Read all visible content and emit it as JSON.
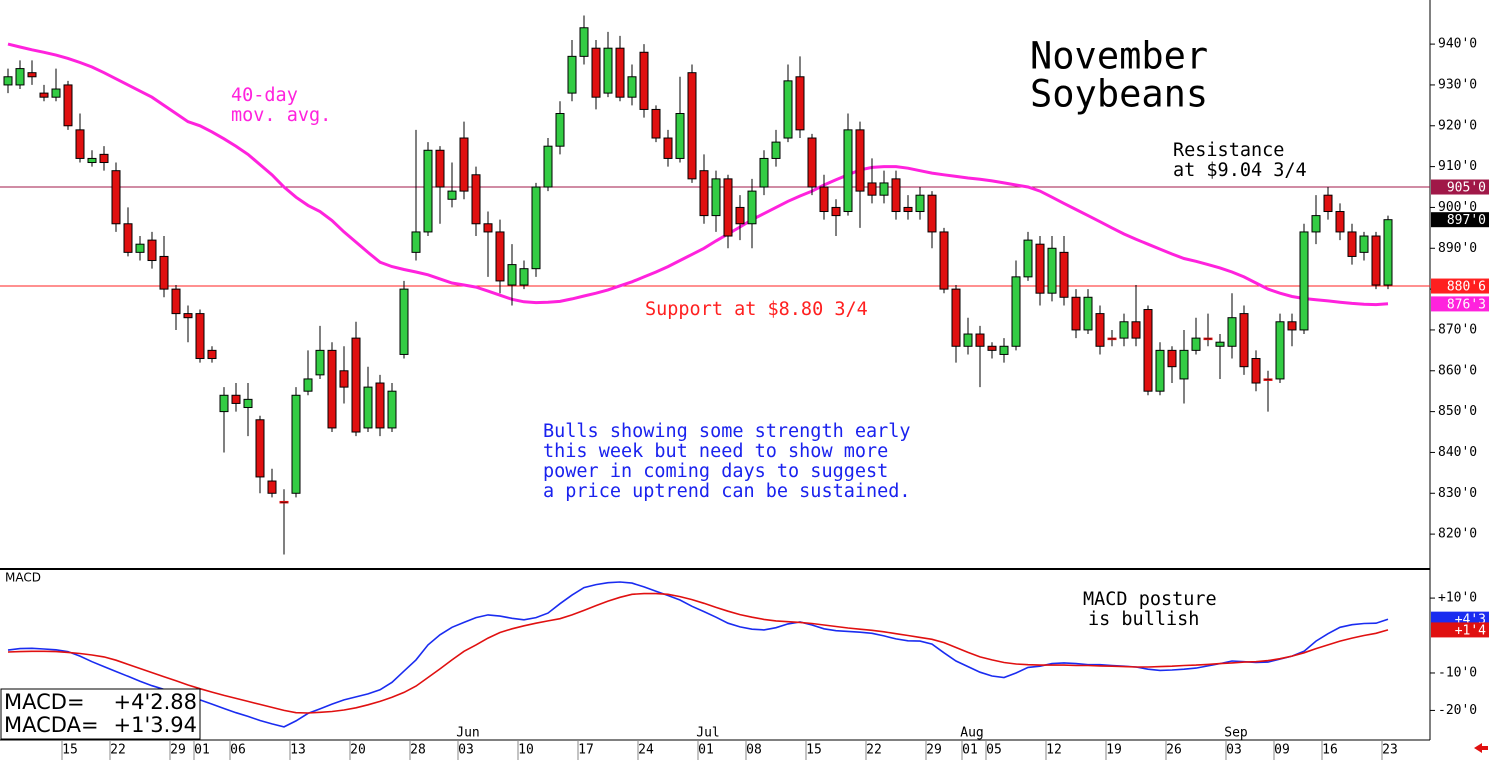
{
  "chart_data": [
    {
      "type": "candlestick",
      "title": [
        "November",
        "Soybeans"
      ],
      "categories": [
        null,
        null,
        null,
        null,
        null,
        "15",
        null,
        null,
        null,
        "22",
        null,
        null,
        null,
        null,
        "29",
        null,
        "01",
        null,
        null,
        "06",
        null,
        null,
        null,
        null,
        "13",
        null,
        null,
        null,
        null,
        "20",
        null,
        null,
        null,
        null,
        "28",
        null,
        null,
        null,
        "03",
        null,
        null,
        null,
        null,
        "10",
        null,
        null,
        null,
        null,
        "17",
        null,
        null,
        null,
        null,
        "24",
        null,
        null,
        null,
        null,
        "01",
        null,
        null,
        null,
        "08",
        null,
        null,
        null,
        null,
        "15",
        null,
        null,
        null,
        null,
        "22",
        null,
        null,
        null,
        null,
        "29",
        null,
        null,
        "01",
        null,
        "05",
        null,
        null,
        null,
        null,
        "12",
        null,
        null,
        null,
        null,
        "19",
        null,
        null,
        null,
        null,
        "26",
        null,
        null,
        null,
        null,
        "03",
        null,
        null,
        null,
        "09",
        null,
        null,
        null,
        "16",
        null,
        null,
        null,
        null,
        "23"
      ],
      "month_labels": [
        "Jun",
        "Jul",
        "Aug",
        "Sep"
      ],
      "open": [
        930,
        930,
        933,
        928,
        927,
        930,
        919,
        911,
        913,
        909,
        896,
        889,
        892,
        888,
        880,
        874,
        874,
        865,
        850,
        854,
        851,
        848,
        833,
        828,
        830,
        855,
        859,
        865,
        860,
        868,
        846,
        857,
        846,
        864,
        889,
        894,
        914,
        902,
        917,
        908,
        896,
        894,
        881,
        881,
        885,
        905,
        915,
        928,
        937,
        939,
        928,
        939,
        927,
        938,
        924,
        917,
        912,
        933,
        909,
        898,
        907,
        900,
        896,
        905,
        912,
        917,
        932,
        917,
        905,
        900,
        899,
        919,
        906,
        903,
        907,
        900,
        899,
        903,
        894,
        880,
        866,
        869,
        866,
        864,
        866,
        883,
        891,
        879,
        889,
        878,
        870,
        874,
        868,
        868,
        872,
        875,
        855,
        865,
        858,
        865,
        868,
        866,
        866,
        874,
        863,
        858,
        858,
        872,
        870,
        894,
        903,
        899,
        894,
        889,
        893,
        881
      ],
      "high": [
        934,
        936,
        936,
        930,
        934,
        931,
        923,
        914,
        915,
        911,
        900,
        893,
        894,
        893,
        881,
        876,
        875,
        866,
        856,
        857,
        857,
        849,
        836,
        831,
        856,
        865,
        871,
        867,
        866,
        872,
        861,
        859,
        857,
        882,
        919,
        916,
        915,
        911,
        921,
        910,
        899,
        897,
        891,
        887,
        906,
        917,
        926,
        941,
        947,
        941,
        943,
        942,
        935,
        940,
        925,
        919,
        932,
        935,
        913,
        909,
        908,
        903,
        907,
        914,
        919,
        935,
        937,
        918,
        908,
        902,
        923,
        921,
        912,
        909,
        909,
        903,
        905,
        904,
        895,
        881,
        873,
        871,
        867,
        868,
        887,
        894,
        893,
        893,
        893,
        880,
        880,
        876,
        870,
        874,
        881,
        876,
        867,
        866,
        870,
        873,
        874,
        869,
        879,
        876,
        865,
        860,
        874,
        874,
        896,
        903,
        905,
        901,
        896,
        894,
        894,
        898
      ],
      "low": [
        928,
        929,
        930,
        926,
        926,
        919,
        911,
        910,
        909,
        894,
        888,
        887,
        885,
        878,
        870,
        867,
        862,
        862,
        840,
        850,
        844,
        830,
        829,
        815,
        829,
        854,
        858,
        845,
        852,
        844,
        845,
        844,
        845,
        863,
        887,
        893,
        896,
        900,
        902,
        893,
        883,
        879,
        876,
        880,
        883,
        904,
        913,
        926,
        935,
        924,
        927,
        926,
        925,
        922,
        916,
        910,
        911,
        906,
        896,
        894,
        890,
        892,
        890,
        903,
        910,
        916,
        917,
        903,
        897,
        893,
        898,
        895,
        901,
        901,
        897,
        897,
        897,
        890,
        879,
        862,
        864,
        856,
        863,
        862,
        865,
        882,
        876,
        877,
        876,
        868,
        869,
        864,
        866,
        866,
        866,
        854,
        854,
        857,
        852,
        864,
        866,
        858,
        863,
        859,
        855,
        850,
        857,
        866,
        869,
        891,
        897,
        892,
        886,
        887,
        880,
        880
      ],
      "close": [
        932,
        934,
        932,
        927,
        929,
        920,
        912,
        912,
        911,
        896,
        889,
        891,
        887,
        880,
        874,
        873,
        863,
        863,
        854,
        852,
        853,
        834,
        830,
        828,
        854,
        858,
        865,
        846,
        856,
        845,
        856,
        846,
        855,
        880,
        894,
        914,
        905,
        904,
        904,
        896,
        894,
        882,
        886,
        885,
        905,
        915,
        923,
        937,
        944,
        927,
        939,
        927,
        932,
        924,
        917,
        912,
        923,
        907,
        898,
        907,
        893,
        896,
        904,
        912,
        916,
        931,
        919,
        905,
        899,
        898,
        919,
        904,
        903,
        906,
        899,
        899,
        903,
        894,
        880,
        866,
        869,
        866,
        865,
        866,
        883,
        892,
        879,
        890,
        878,
        870,
        878,
        866,
        868,
        872,
        868,
        855,
        865,
        861,
        865,
        868,
        868,
        867,
        873,
        861,
        857,
        858,
        872,
        870,
        894,
        898,
        899,
        894,
        888,
        893,
        881,
        897
      ],
      "up_color": "#33cc44",
      "down_color": "#e01010",
      "overlays": [
        {
          "color": "#ff22dd",
          "values": [
            940,
            939.3,
            938.6,
            938,
            937.3,
            936.5,
            935.5,
            934.4,
            933,
            931.5,
            930,
            928.5,
            927,
            925,
            923,
            921,
            920,
            918.5,
            916.8,
            915,
            913,
            910.5,
            908,
            905,
            902.5,
            900.5,
            899,
            896.8,
            894,
            891.5,
            889,
            886.6,
            885.5,
            884.8,
            884.2,
            883.5,
            882.5,
            881.5,
            881,
            880.5,
            879.5,
            878.5,
            877.5,
            876.9,
            876.7,
            876.8,
            877,
            877.6,
            878.3,
            879,
            879.8,
            880.8,
            881.8,
            883,
            884.2,
            885.5,
            887,
            888.5,
            890,
            891.8,
            893.5,
            895.2,
            897,
            898.5,
            900,
            901.5,
            902.8,
            904,
            905.5,
            906.8,
            908,
            909.2,
            909.8,
            910,
            910,
            909.6,
            909,
            908.4,
            908,
            907.6,
            907.2,
            906.9,
            906.5,
            906,
            905.5,
            905,
            904,
            902.5,
            901,
            899.5,
            898,
            896.5,
            895,
            893.5,
            892.2,
            891,
            889.8,
            888.6,
            887.5,
            886.8,
            886,
            885.2,
            884.2,
            883,
            881.5,
            880,
            879,
            878.2,
            877.7,
            877.4,
            877.1,
            876.8,
            876.5,
            876.3,
            876.2,
            876.4
          ]
        }
      ],
      "hlines": [
        {
          "value": 905,
          "label": "905'0",
          "color": "#a01848"
        },
        {
          "value": 880.75,
          "label": "880'6",
          "color": "#ff2020"
        }
      ],
      "tags": [
        {
          "value": 897,
          "label": "897'0",
          "color": "#000000"
        },
        {
          "value": 876.375,
          "label": "876'3",
          "color": "#ff22dd"
        }
      ],
      "annotations": [
        {
          "lines": [
            "40-day",
            "mov. avg."
          ],
          "color": "#ff22dd"
        },
        {
          "lines": [
            "Resistance",
            "at $9.04 3/4"
          ],
          "color": "#000000"
        },
        {
          "lines": [
            "Support at $8.80 3/4"
          ],
          "color": "#ff2020"
        },
        {
          "lines": [
            "Bulls showing some strength early",
            "this week but need to show more",
            "power in coming days to suggest",
            "a price uptrend can be sustained."
          ],
          "color": "#1a22ee"
        }
      ],
      "ylim": [
        811.7,
        950.8
      ],
      "yticks": [
        {
          "value": 940,
          "label": "940'0"
        },
        {
          "value": 930,
          "label": "930'0"
        },
        {
          "value": 920,
          "label": "920'0"
        },
        {
          "value": 910,
          "label": "910'0"
        },
        {
          "value": 900,
          "label": "900'0"
        },
        {
          "value": 890,
          "label": "890'0"
        },
        {
          "value": 880,
          "label": "880'0"
        },
        {
          "value": 870,
          "label": "870'0"
        },
        {
          "value": 860,
          "label": "860'0"
        },
        {
          "value": 850,
          "label": "850'0"
        },
        {
          "value": 840,
          "label": "840'0"
        },
        {
          "value": 830,
          "label": "830'0"
        },
        {
          "value": 820,
          "label": "820'0"
        }
      ]
    },
    {
      "type": "macd",
      "title": "MACD",
      "series": [
        {
          "color": "#1a2cf0",
          "values": [
            -3.9,
            -3.5,
            -3.4,
            -3.6,
            -3.8,
            -4.3,
            -5.5,
            -7,
            -8.3,
            -9.6,
            -10.9,
            -12.2,
            -13.4,
            -14.4,
            -15.4,
            -16.3,
            -17.2,
            -18.3,
            -19.5,
            -20.6,
            -21.6,
            -22.7,
            -23.6,
            -24.4,
            -22.8,
            -20.8,
            -19.6,
            -18.3,
            -17.2,
            -16.4,
            -15.6,
            -14.5,
            -12.5,
            -9.5,
            -6.5,
            -2.5,
            0.2,
            2.2,
            3.5,
            4.8,
            5.5,
            5.2,
            4.6,
            4.2,
            4.8,
            6,
            8.5,
            10.8,
            12.8,
            13.6,
            14.1,
            14.3,
            14,
            13,
            11.8,
            10.7,
            9.5,
            7.8,
            6.4,
            4.9,
            3.3,
            2.3,
            1.7,
            1.5,
            2.1,
            3.1,
            3.6,
            2.8,
            1.8,
            1.3,
            1.1,
            0.9,
            0.6,
            -0.1,
            -0.9,
            -1.4,
            -1.5,
            -2.3,
            -4.6,
            -6.8,
            -8.3,
            -9.8,
            -10.8,
            -11.2,
            -10,
            -8.5,
            -8.2,
            -7.5,
            -7.3,
            -7.5,
            -7.8,
            -7.8,
            -8,
            -8.2,
            -8.4,
            -9,
            -9.3,
            -9.2,
            -9,
            -8.7,
            -8.1,
            -7.5,
            -6.8,
            -7,
            -7.2,
            -7.1,
            -6.3,
            -5.5,
            -4.2,
            -1.5,
            0.5,
            2.2,
            2.9,
            3.2,
            3.3,
            4.36
          ]
        },
        {
          "color": "#e01010",
          "values": [
            -4.4,
            -4.3,
            -4.2,
            -4.2,
            -4.3,
            -4.5,
            -4.8,
            -5.2,
            -5.7,
            -6.6,
            -7.7,
            -8.8,
            -9.9,
            -11,
            -12.1,
            -13.2,
            -14.2,
            -15.1,
            -16,
            -16.8,
            -17.6,
            -18.4,
            -19.2,
            -20,
            -20.6,
            -20.7,
            -20.5,
            -20.3,
            -19.9,
            -19.3,
            -18.5,
            -17.6,
            -16.5,
            -15.2,
            -13.5,
            -11.2,
            -8.9,
            -6.5,
            -4.2,
            -2.5,
            -0.7,
            0.8,
            1.8,
            2.6,
            3.3,
            3.9,
            4.5,
            5.5,
            6.7,
            8,
            9.2,
            10.2,
            11,
            11.2,
            11.2,
            11,
            10.4,
            9.6,
            8.6,
            7.5,
            6.5,
            5.6,
            4.9,
            4.3,
            3.9,
            3.7,
            3.5,
            3.2,
            2.8,
            2.4,
            2,
            1.7,
            1.4,
            1,
            0.5,
            0,
            -0.5,
            -1,
            -1.9,
            -3.2,
            -4.5,
            -5.7,
            -6.5,
            -7.2,
            -7.6,
            -7.8,
            -7.9,
            -7.9,
            -7.9,
            -8,
            -8,
            -8.1,
            -8.2,
            -8.3,
            -8.4,
            -8.4,
            -8.3,
            -8.2,
            -8,
            -7.9,
            -7.7,
            -7.5,
            -7.3,
            -7.1,
            -7,
            -6.7,
            -6.2,
            -5.5,
            -4.6,
            -3.5,
            -2.5,
            -1.5,
            -0.7,
            0,
            0.6,
            1.49
          ]
        }
      ],
      "tags": [
        {
          "value": 4.375,
          "label": "+4'3",
          "color": "#1a2cf0"
        },
        {
          "value": 1.5,
          "label": "+1'4",
          "color": "#e01010"
        }
      ],
      "annotation": [
        "MACD posture",
        "is bullish"
      ],
      "readout": [
        {
          "label": "MACD=",
          "value": "+4'2.88"
        },
        {
          "label": "MACDA=",
          "value": "+1'3.94"
        }
      ],
      "ylim": [
        -27.9,
        17.5
      ],
      "yticks": [
        {
          "value": 10,
          "label": "+10'0"
        },
        {
          "value": -10,
          "label": "-10'0"
        },
        {
          "value": -20,
          "label": "-20'0"
        }
      ]
    }
  ]
}
